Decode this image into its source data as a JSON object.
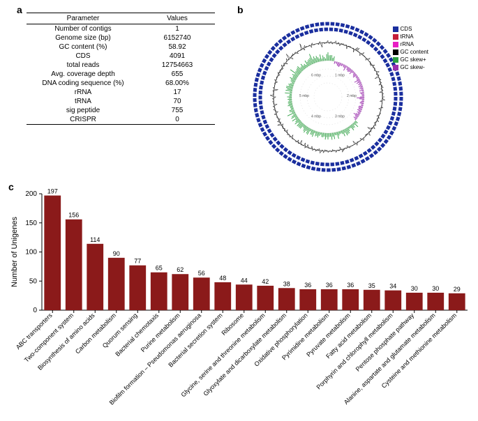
{
  "labels": {
    "a": "a",
    "b": "b",
    "c": "c"
  },
  "table": {
    "headers": [
      "Parameter",
      "Values"
    ],
    "rows": [
      [
        "Number of contigs",
        "1"
      ],
      [
        "Genome size (bp)",
        "6152740"
      ],
      [
        "GC content (%)",
        "58.92"
      ],
      [
        "CDS",
        "4091"
      ],
      [
        "total reads",
        "12754663"
      ],
      [
        "Avg. coverage depth",
        "655"
      ],
      [
        "DNA coding sequence (%)",
        "68.00%"
      ],
      [
        "rRNA",
        "17"
      ],
      [
        "tRNA",
        "70"
      ],
      [
        "sig peptide",
        "755"
      ],
      [
        "CRISPR",
        "0"
      ]
    ]
  },
  "circos": {
    "legend": [
      {
        "label": "CDS",
        "color": "#1a2e9e"
      },
      {
        "label": "tRNA",
        "color": "#c41e3a"
      },
      {
        "label": "rRNA",
        "color": "#e91ec4"
      },
      {
        "label": "GC content",
        "color": "#000000"
      },
      {
        "label": "GC skew+",
        "color": "#2ea043"
      },
      {
        "label": "GC skew-",
        "color": "#9b2fae"
      }
    ],
    "ticks": [
      "1 mbp",
      "2 mbp",
      "3 mbp",
      "4 mbp",
      "5 mbp",
      "6 mbp"
    ],
    "ring_colors": {
      "cds_outer": "#1a2e9e",
      "cds_inner": "#1a2e9e",
      "gc_content": "#000000",
      "skew_pos": "#2ea043",
      "skew_neg": "#9b2fae"
    },
    "background": "#ffffff"
  },
  "barchart": {
    "type": "bar",
    "ylabel": "Number of Unigenes",
    "ylim": [
      0,
      200
    ],
    "ytick_step": 50,
    "yticks": [
      0,
      50,
      100,
      150,
      200
    ],
    "bar_color": "#8b1a1a",
    "text_color": "#000000",
    "label_fontsize": 9,
    "value_fontsize": 9,
    "axis_fontsize": 10,
    "background": "#ffffff",
    "categories": [
      "ABC transporters",
      "Two-component system",
      "Biosynthesis of amino acids",
      "Carbon metabolism",
      "Quorum sensing",
      "Bacterial chemotaxis",
      "Purine metabolism",
      "Biofilm formation – Pseudomonas aeruginosa",
      "Bacterial secretion system",
      "Ribosome",
      "Glycine, serine and threonine metabolism",
      "Glyoxylate and dicarboxylate metabolism",
      "Oxidative phosphorylation",
      "Pyrimidine metabolism",
      "Pyruvate metabolism",
      "Fatty acid metabolism",
      "Porphyrin and chlorophyll metabolism",
      "Pentose phosphate pathway",
      "Alanine, aspartate and glutamate metabolism",
      "Cysteine and methionine metabolism"
    ],
    "values": [
      197,
      156,
      114,
      90,
      77,
      65,
      62,
      56,
      48,
      44,
      42,
      38,
      36,
      36,
      36,
      35,
      34,
      30,
      30,
      29
    ]
  }
}
